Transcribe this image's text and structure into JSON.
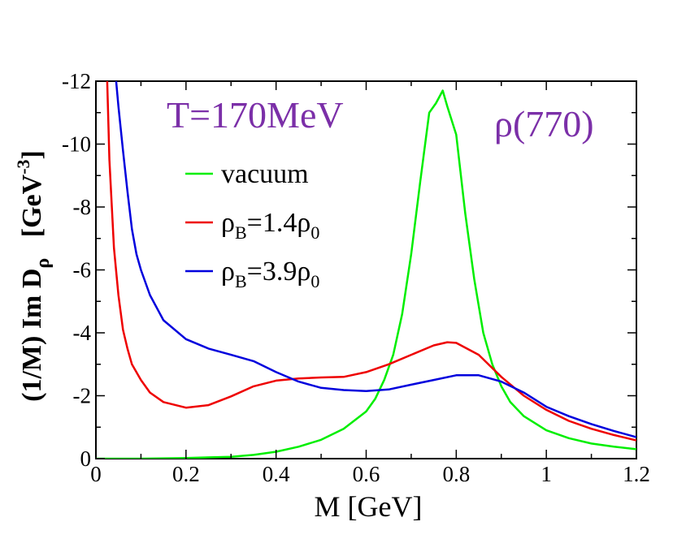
{
  "chart_data": {
    "type": "line",
    "title": "",
    "xlabel": "M [GeV]",
    "ylabel": {
      "main": "(1/M)  Im D",
      "subscript": "ρ",
      "units_open": "[GeV",
      "units_exp": "-3",
      "units_close": "]"
    },
    "xlim": [
      0,
      1.2
    ],
    "ylim": [
      0,
      -12
    ],
    "y_inverted": true,
    "grid": false,
    "x_ticks": [
      {
        "value": 0,
        "label": "0"
      },
      {
        "value": 0.2,
        "label": "0.2"
      },
      {
        "value": 0.4,
        "label": "0.4"
      },
      {
        "value": 0.6,
        "label": "0.6"
      },
      {
        "value": 0.8,
        "label": "0.8"
      },
      {
        "value": 1.0,
        "label": "1"
      },
      {
        "value": 1.2,
        "label": "1.2"
      }
    ],
    "y_ticks": [
      {
        "value": 0,
        "label": "0"
      },
      {
        "value": -2,
        "label": "-2"
      },
      {
        "value": -4,
        "label": "-4"
      },
      {
        "value": -6,
        "label": "-6"
      },
      {
        "value": -8,
        "label": "-8"
      },
      {
        "value": -10,
        "label": "-10"
      },
      {
        "value": -12,
        "label": "-12"
      }
    ],
    "annotations": [
      {
        "text": "T=170MeV",
        "color": "#7b2fa8",
        "placement": "top-left"
      },
      {
        "text": "ρ(770)",
        "color": "#7b2fa8",
        "placement": "top-right"
      }
    ],
    "legend_placement": "upper-left",
    "series": [
      {
        "name": "vacuum",
        "legend": {
          "sym": "vacuum",
          "sub1": "",
          "mid": "",
          "sub2": ""
        },
        "color": "#00ee00",
        "x": [
          0,
          0.1,
          0.2,
          0.3,
          0.35,
          0.4,
          0.45,
          0.5,
          0.55,
          0.6,
          0.62,
          0.64,
          0.66,
          0.68,
          0.7,
          0.72,
          0.74,
          0.755,
          0.77,
          0.78,
          0.8,
          0.82,
          0.84,
          0.86,
          0.88,
          0.9,
          0.92,
          0.95,
          1.0,
          1.05,
          1.1,
          1.15,
          1.2
        ],
        "y": [
          0,
          0,
          -0.02,
          -0.06,
          -0.12,
          -0.22,
          -0.38,
          -0.6,
          -0.95,
          -1.5,
          -1.9,
          -2.5,
          -3.3,
          -4.6,
          -6.5,
          -8.8,
          -11.0,
          -11.3,
          -11.7,
          -11.2,
          -10.3,
          -7.8,
          -5.7,
          -4.0,
          -3.0,
          -2.3,
          -1.8,
          -1.35,
          -0.9,
          -0.65,
          -0.48,
          -0.38,
          -0.3
        ]
      },
      {
        "name": "ρB=1.4ρ0",
        "legend": {
          "sym": "ρ",
          "sub1": "B",
          "mid": "=1.4ρ",
          "sub2": "0"
        },
        "color": "#ee0000",
        "x": [
          0.025,
          0.03,
          0.04,
          0.05,
          0.06,
          0.07,
          0.08,
          0.1,
          0.12,
          0.15,
          0.2,
          0.25,
          0.3,
          0.35,
          0.4,
          0.45,
          0.5,
          0.55,
          0.6,
          0.65,
          0.7,
          0.75,
          0.78,
          0.8,
          0.85,
          0.9,
          0.95,
          1.0,
          1.05,
          1.1,
          1.15,
          1.2
        ],
        "y": [
          -12.0,
          -9.5,
          -6.7,
          -5.2,
          -4.1,
          -3.5,
          -3.0,
          -2.5,
          -2.1,
          -1.8,
          -1.62,
          -1.7,
          -1.98,
          -2.3,
          -2.48,
          -2.55,
          -2.58,
          -2.6,
          -2.75,
          -3.0,
          -3.3,
          -3.6,
          -3.7,
          -3.68,
          -3.3,
          -2.6,
          -2.0,
          -1.55,
          -1.2,
          -0.95,
          -0.75,
          -0.58
        ]
      },
      {
        "name": "ρB=3.9ρ0",
        "legend": {
          "sym": "ρ",
          "sub1": "B",
          "mid": "=3.9ρ",
          "sub2": "0"
        },
        "color": "#0000dd",
        "x": [
          0.045,
          0.05,
          0.06,
          0.07,
          0.08,
          0.09,
          0.1,
          0.12,
          0.15,
          0.2,
          0.25,
          0.3,
          0.35,
          0.4,
          0.45,
          0.5,
          0.55,
          0.6,
          0.65,
          0.7,
          0.75,
          0.8,
          0.85,
          0.9,
          0.95,
          1.0,
          1.05,
          1.1,
          1.15,
          1.2
        ],
        "y": [
          -12.0,
          -11.2,
          -9.8,
          -8.5,
          -7.3,
          -6.5,
          -6.0,
          -5.2,
          -4.4,
          -3.8,
          -3.5,
          -3.3,
          -3.1,
          -2.75,
          -2.45,
          -2.25,
          -2.18,
          -2.15,
          -2.2,
          -2.35,
          -2.5,
          -2.65,
          -2.65,
          -2.45,
          -2.1,
          -1.65,
          -1.35,
          -1.1,
          -0.88,
          -0.68
        ]
      }
    ]
  }
}
